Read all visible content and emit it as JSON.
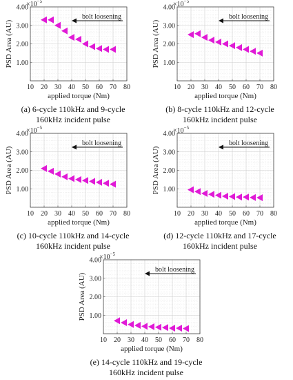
{
  "accent_color": "#e01ad6",
  "chart_data": [
    {
      "type": "scatter",
      "xlabel": "applied torque (Nm)",
      "ylabel": "PSD Area (AU)",
      "xlim": [
        10,
        80
      ],
      "ylim": [
        0,
        4
      ],
      "x_ticks": [
        "10",
        "20",
        "30",
        "40",
        "50",
        "60",
        "70",
        "80"
      ],
      "y_ticks": [
        "1.00",
        "2.00",
        "3.00",
        "4.00"
      ],
      "y_exponent": "×10",
      "y_exponent_power": "−5",
      "grid": true,
      "annotation": "bolt loosening",
      "caption": [
        "(a) 6-cycle 110kHz and 9-cycle",
        "160kHz incident pulse"
      ],
      "series": [
        {
          "color": "#e01ad6",
          "marker": "triangle-left",
          "x": [
            20,
            25,
            30,
            35,
            40,
            45,
            50,
            55,
            60,
            65,
            70
          ],
          "y": [
            3.3,
            3.3,
            3.0,
            2.7,
            2.35,
            2.25,
            2.0,
            1.85,
            1.75,
            1.7,
            1.7
          ]
        }
      ]
    },
    {
      "type": "scatter",
      "xlabel": "applied torque (Nm)",
      "ylabel": "PSD Area (AU)",
      "xlim": [
        10,
        80
      ],
      "ylim": [
        0,
        4
      ],
      "x_ticks": [
        "10",
        "20",
        "30",
        "40",
        "50",
        "60",
        "70",
        "80"
      ],
      "y_ticks": [
        "1.00",
        "2.00",
        "3.00",
        "4.00"
      ],
      "y_exponent": "×10",
      "y_exponent_power": "−5",
      "grid": true,
      "annotation": "bolt loosening",
      "caption": [
        "(b) 8-cycle 110kHz and 12-cycle",
        "160kHz incident pulse"
      ],
      "series": [
        {
          "color": "#e01ad6",
          "marker": "triangle-left",
          "x": [
            20,
            25,
            30,
            35,
            40,
            45,
            50,
            55,
            60,
            65,
            70
          ],
          "y": [
            2.5,
            2.55,
            2.35,
            2.2,
            2.1,
            2.0,
            1.9,
            1.8,
            1.7,
            1.6,
            1.5
          ]
        }
      ]
    },
    {
      "type": "scatter",
      "xlabel": "applied torque (Nm)",
      "ylabel": "PSD Area (AU)",
      "xlim": [
        10,
        80
      ],
      "ylim": [
        0,
        4
      ],
      "x_ticks": [
        "10",
        "20",
        "30",
        "40",
        "50",
        "60",
        "70",
        "80"
      ],
      "y_ticks": [
        "1.00",
        "2.00",
        "3.00",
        "4.00"
      ],
      "y_exponent": "×10",
      "y_exponent_power": "−5",
      "grid": true,
      "annotation": "bolt loosening",
      "caption": [
        "(c) 10-cycle 110kHz and 14-cycle",
        "160kHz incident pulse"
      ],
      "series": [
        {
          "color": "#e01ad6",
          "marker": "triangle-left",
          "x": [
            20,
            25,
            30,
            35,
            40,
            45,
            50,
            55,
            60,
            65,
            70
          ],
          "y": [
            2.1,
            1.95,
            1.8,
            1.65,
            1.55,
            1.5,
            1.45,
            1.4,
            1.35,
            1.3,
            1.25
          ]
        }
      ]
    },
    {
      "type": "scatter",
      "xlabel": "applied torque (Nm)",
      "ylabel": "PSD Area (AU)",
      "xlim": [
        10,
        80
      ],
      "ylim": [
        0,
        4
      ],
      "x_ticks": [
        "10",
        "20",
        "30",
        "40",
        "50",
        "60",
        "70",
        "80"
      ],
      "y_ticks": [
        "1.00",
        "2.00",
        "3.00",
        "4.00"
      ],
      "y_exponent": "×10",
      "y_exponent_power": "−5",
      "grid": true,
      "annotation": "bolt loosening",
      "caption": [
        "(d) 12-cycle 110kHz and 17-cycle",
        "160kHz incident pulse"
      ],
      "series": [
        {
          "color": "#e01ad6",
          "marker": "triangle-left",
          "x": [
            20,
            25,
            30,
            35,
            40,
            45,
            50,
            55,
            60,
            65,
            70
          ],
          "y": [
            0.95,
            0.85,
            0.75,
            0.7,
            0.65,
            0.6,
            0.58,
            0.55,
            0.55,
            0.53,
            0.52
          ]
        }
      ]
    },
    {
      "type": "scatter",
      "xlabel": "applied torque (Nm)",
      "ylabel": "PSD Area (AU)",
      "xlim": [
        10,
        80
      ],
      "ylim": [
        0,
        4
      ],
      "x_ticks": [
        "10",
        "20",
        "30",
        "40",
        "50",
        "60",
        "70",
        "80"
      ],
      "y_ticks": [
        "1.00",
        "2.00",
        "3.00",
        "4.00"
      ],
      "y_exponent": "×10",
      "y_exponent_power": "−5",
      "grid": true,
      "annotation": "bolt loosening",
      "caption": [
        "(e) 14-cycle 110kHz and 19-cycle",
        "160kHz incident pulse"
      ],
      "series": [
        {
          "color": "#e01ad6",
          "marker": "triangle-left",
          "x": [
            20,
            25,
            30,
            35,
            40,
            45,
            50,
            55,
            60,
            65,
            70
          ],
          "y": [
            0.7,
            0.6,
            0.5,
            0.45,
            0.4,
            0.38,
            0.35,
            0.33,
            0.3,
            0.3,
            0.28
          ]
        }
      ]
    }
  ]
}
